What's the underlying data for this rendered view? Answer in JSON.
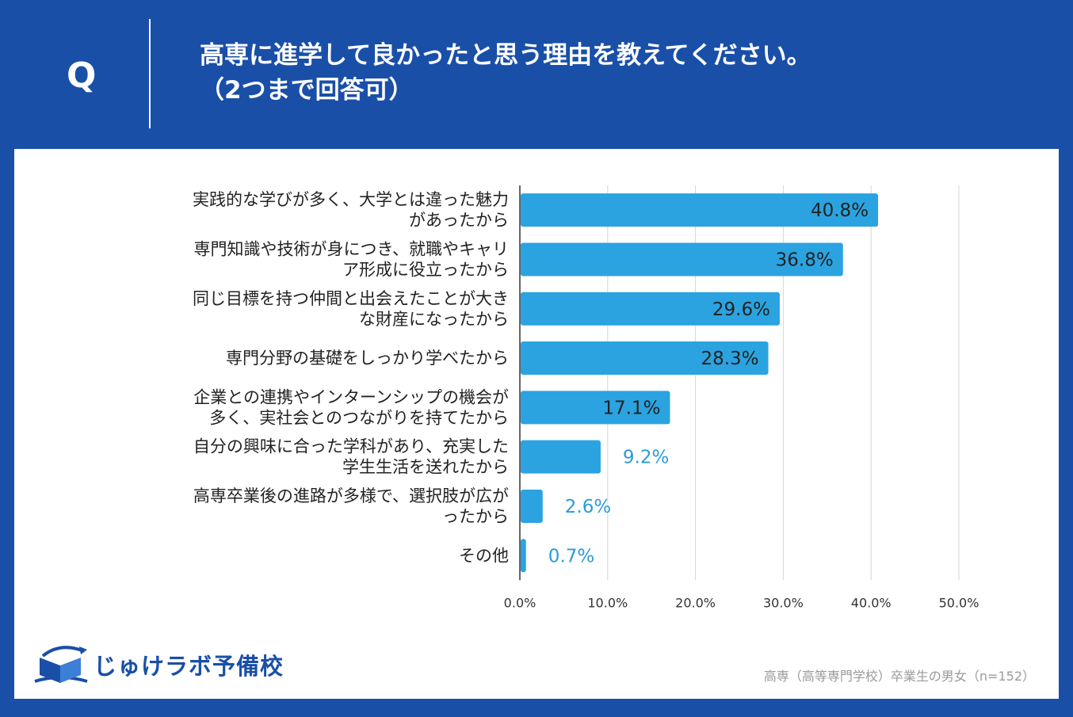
{
  "header": {
    "q_label": "Q",
    "question_line1": "高専に進学して良かったと思う理由を教えてください。",
    "question_line2": "（2つまで回答可）"
  },
  "brand": {
    "name": "じゅけラボ予備校",
    "primary_color": "#1a4fa8",
    "accent_color": "#2b9bd8"
  },
  "footnote": "高専（高等専門学校）卒業生の男女（n=152）",
  "chart_data": {
    "type": "bar",
    "orientation": "horizontal",
    "categories": [
      [
        "実践的な学びが多く、大学とは違った魅力",
        "があったから"
      ],
      [
        "専門知識や技術が身につき、就職やキャリ",
        "ア形成に役立ったから"
      ],
      [
        "同じ目標を持つ仲間と出会えたことが大き",
        "な財産になったから"
      ],
      [
        "専門分野の基礎をしっかり学べたから"
      ],
      [
        "企業との連携やインターンシップの機会が",
        "多く、実社会とのつながりを持てたから"
      ],
      [
        "自分の興味に合った学科があり、充実した",
        "学生生活を送れたから"
      ],
      [
        "高専卒業後の進路が多様で、選択肢が広が",
        "ったから"
      ],
      [
        "その他"
      ]
    ],
    "values": [
      40.8,
      36.8,
      29.6,
      28.3,
      17.1,
      9.2,
      2.6,
      0.7
    ],
    "value_labels": [
      "40.8%",
      "36.8%",
      "29.6%",
      "28.3%",
      "17.1%",
      "9.2%",
      "2.6%",
      "0.7%"
    ],
    "xlim": [
      0,
      50
    ],
    "xticks": [
      "0.0%",
      "10.0%",
      "20.0%",
      "30.0%",
      "40.0%",
      "50.0%"
    ],
    "grid": true,
    "bar_color": "#2ba3e0"
  }
}
